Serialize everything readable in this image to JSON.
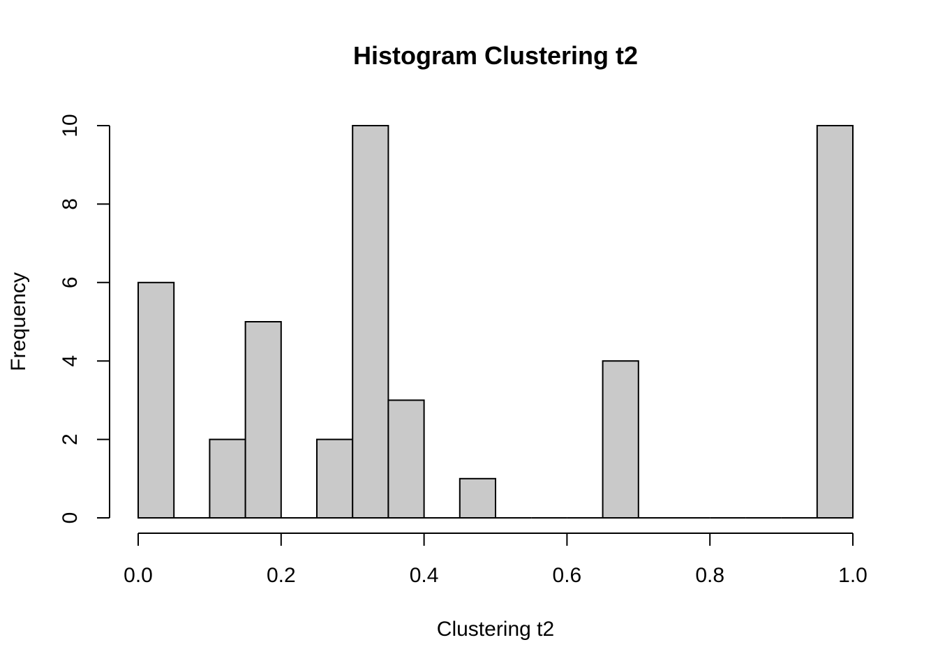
{
  "chart_data": {
    "type": "bar",
    "title": "Histogram Clustering t2",
    "xlabel": "Clustering t2",
    "ylabel": "Frequency",
    "bin_edges": [
      0.0,
      0.05,
      0.1,
      0.15,
      0.2,
      0.25,
      0.3,
      0.35,
      0.4,
      0.45,
      0.5,
      0.55,
      0.6,
      0.65,
      0.7,
      0.75,
      0.8,
      0.85,
      0.9,
      0.95,
      1.0
    ],
    "values": [
      6,
      0,
      2,
      5,
      0,
      2,
      10,
      3,
      0,
      1,
      0,
      0,
      0,
      4,
      0,
      0,
      0,
      0,
      0,
      10
    ],
    "xlim": [
      0.0,
      1.0
    ],
    "ylim": [
      0,
      10
    ],
    "x_ticks": [
      "0.0",
      "0.2",
      "0.4",
      "0.6",
      "0.8",
      "1.0"
    ],
    "y_ticks": [
      "0",
      "2",
      "4",
      "6",
      "8",
      "10"
    ],
    "bar_color": "#c9c9c9",
    "edge_color": "#000000",
    "grid": false,
    "legend": "none"
  }
}
